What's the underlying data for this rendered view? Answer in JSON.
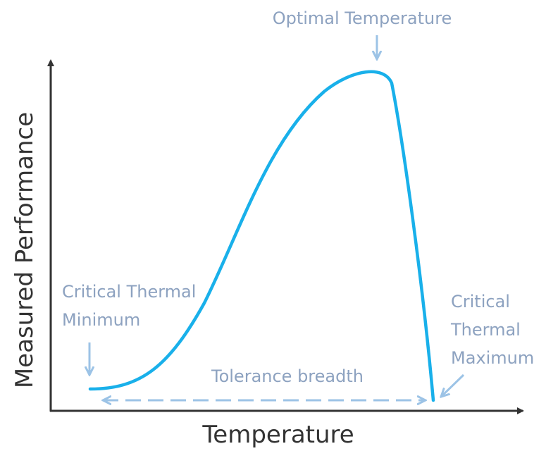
{
  "diagram": {
    "annotations": {
      "optimal": {
        "lines": [
          "Optimal Temperature"
        ]
      },
      "minimum": {
        "lines": [
          "Critical Thermal",
          "Minimum"
        ]
      },
      "maximum": {
        "lines": [
          "Critical",
          "Thermal",
          "Maximum"
        ]
      },
      "breadth": {
        "lines": [
          "Tolerance breadth"
        ]
      }
    },
    "y_axis_label": "Measured Performance",
    "x_axis_label": "Temperature"
  }
}
